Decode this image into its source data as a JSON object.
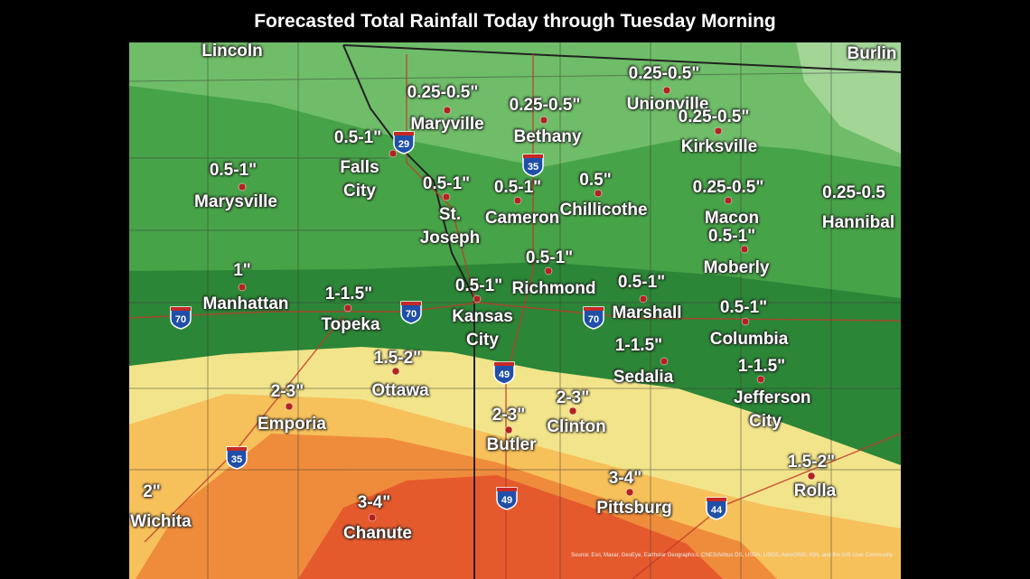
{
  "title": "Forecasted Total Rainfall Today through Tuesday Morning",
  "places": [
    {
      "name": "Lincoln",
      "amount": null
    },
    {
      "name": "Burlin",
      "amount": null
    },
    {
      "name": "Maryville",
      "amount": "0.25-0.5\""
    },
    {
      "name": "Bethany",
      "amount": "0.25-0.5\""
    },
    {
      "name": "Unionville",
      "amount": "0.25-0.5\""
    },
    {
      "name": "Kirksville",
      "amount": "0.25-0.5\""
    },
    {
      "name": "Falls City",
      "amount": "0.5-1\""
    },
    {
      "name": "Marysville",
      "amount": "0.5-1\""
    },
    {
      "name": "St. Joseph",
      "amount": "0.5-1\""
    },
    {
      "name": "Cameron",
      "amount": "0.5-1\""
    },
    {
      "name": "Chillicothe",
      "amount": "0.5\""
    },
    {
      "name": "Macon",
      "amount": "0.25-0.5\""
    },
    {
      "name": "Hannibal",
      "amount": "0.25-0.5"
    },
    {
      "name": "Moberly",
      "amount": "0.5-1\""
    },
    {
      "name": "Richmond",
      "amount": "0.5-1\""
    },
    {
      "name": "Manhattan",
      "amount": "1\""
    },
    {
      "name": "Topeka",
      "amount": "1-1.5\""
    },
    {
      "name": "Kansas City",
      "amount": "0.5-1\""
    },
    {
      "name": "Marshall",
      "amount": "0.5-1\""
    },
    {
      "name": "Columbia",
      "amount": "0.5-1\""
    },
    {
      "name": "Sedalia",
      "amount": "1-1.5\""
    },
    {
      "name": "Jefferson City",
      "amount": "1-1.5\""
    },
    {
      "name": "Ottawa",
      "amount": "1.5-2\""
    },
    {
      "name": "Emporia",
      "amount": "2-3\""
    },
    {
      "name": "Clinton",
      "amount": "2-3\""
    },
    {
      "name": "Butler",
      "amount": "2-3\""
    },
    {
      "name": "Rolla",
      "amount": "1.5-2\""
    },
    {
      "name": "Pittsburg",
      "amount": "3-4\""
    },
    {
      "name": "Wichita",
      "amount": "2\""
    },
    {
      "name": "Chanute",
      "amount": "3-4\""
    }
  ],
  "highways": [
    "29",
    "35",
    "70",
    "70",
    "70",
    "49",
    "35",
    "49",
    "44"
  ],
  "source": "Source: Esri, Maxar, GeoEye, Earthstar Geographics, CNES/Airbus DS, USDA, USGS, AeroGRID, IGN, and the GIS User Community"
}
